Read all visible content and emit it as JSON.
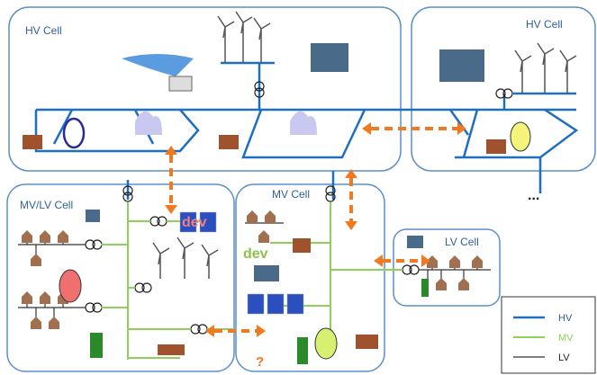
{
  "cells": [
    {
      "label": "HV Cell"
    },
    {
      "label": "HV Cell"
    },
    {
      "label": "MV/LV Cell"
    },
    {
      "label": "MV Cell"
    },
    {
      "label": "LV Cell"
    }
  ],
  "annotations": [
    {
      "label": "dev"
    },
    {
      "label": "dev"
    },
    {
      "label": "?"
    },
    {
      "label": "..."
    }
  ],
  "legend": [
    {
      "label": "HV"
    },
    {
      "label": "MV"
    },
    {
      "label": "LV"
    }
  ]
}
